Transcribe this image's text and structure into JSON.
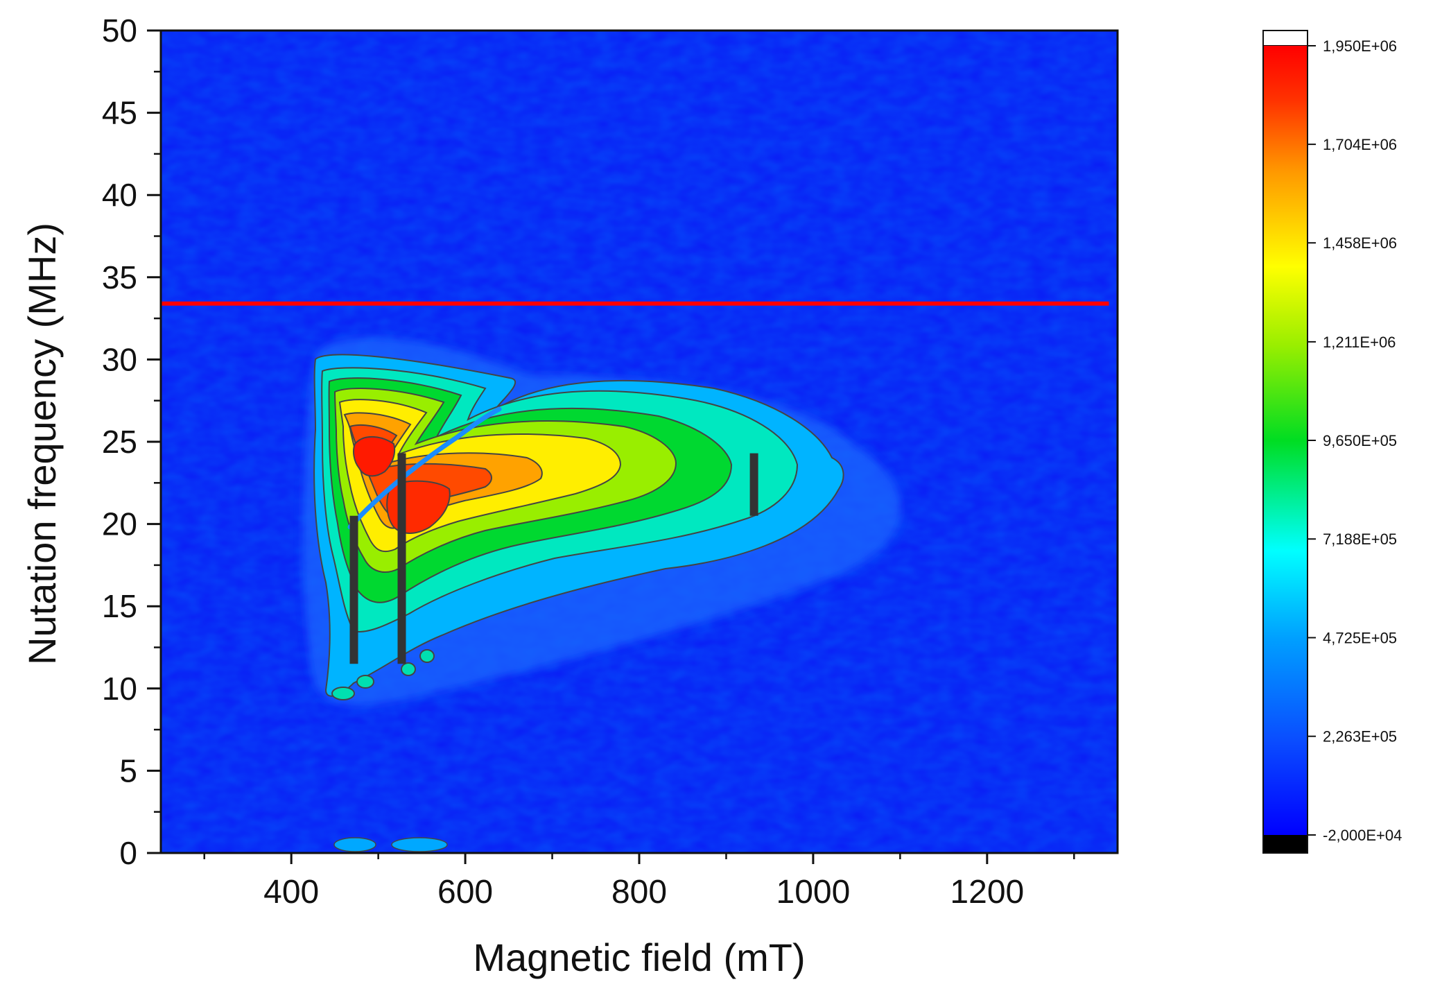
{
  "chart_data": {
    "type": "heatmap",
    "subtype": "filled-contour",
    "xlabel": "Magnetic field (mT)",
    "ylabel": "Nutation frequency (MHz)",
    "xlim": [
      250,
      1350
    ],
    "ylim": [
      0,
      50
    ],
    "x_ticks": [
      400,
      600,
      800,
      1000,
      1200
    ],
    "y_ticks": [
      0,
      5,
      10,
      15,
      20,
      25,
      30,
      35,
      40,
      45,
      50
    ],
    "x_minor_ticks": [
      300,
      500,
      700,
      900,
      1100,
      1300
    ],
    "y_minor_ticks": [
      2.5,
      7.5,
      12.5,
      17.5,
      22.5,
      27.5,
      32.5,
      37.5,
      42.5,
      47.5
    ],
    "grid": false,
    "colormap": [
      "#0000ff",
      "#00a0ff",
      "#00ffff",
      "#00dd22",
      "#aaee00",
      "#ffff00",
      "#ff9900",
      "#ff2200",
      "#ff0000"
    ],
    "colorbar": {
      "min": -20000,
      "max": 1950000,
      "labels": [
        "1,950E+06",
        "1,704E+06",
        "1,458E+06",
        "1,211E+06",
        "9,650E+05",
        "7,188E+05",
        "4,725E+05",
        "2,263E+05",
        "-2,000E+04"
      ],
      "values": [
        1950000,
        1704000,
        1458000,
        1211000,
        965000,
        718800,
        472500,
        226300,
        -20000
      ],
      "above_color": "#ffffff",
      "below_color": "#000000"
    },
    "peaks": [
      {
        "x": 495,
        "y": 23.5,
        "value": 1950000
      },
      {
        "x": 545,
        "y": 20.5,
        "value": 1800000
      },
      {
        "x": 650,
        "y": 21.5,
        "value": 1450000
      },
      {
        "x": 780,
        "y": 22.5,
        "value": 1100000
      }
    ],
    "reference_line": {
      "y": 33.4,
      "x_range": [
        250,
        1340
      ],
      "color": "#ff0000"
    },
    "markers": [
      {
        "x": 472,
        "y_range": [
          11.5,
          20.5
        ],
        "color": "#333333"
      },
      {
        "x": 527,
        "y_range": [
          11.5,
          24.3
        ],
        "color": "#333333"
      },
      {
        "x": 932,
        "y_range": [
          20.5,
          24.3
        ],
        "color": "#333333"
      }
    ]
  }
}
